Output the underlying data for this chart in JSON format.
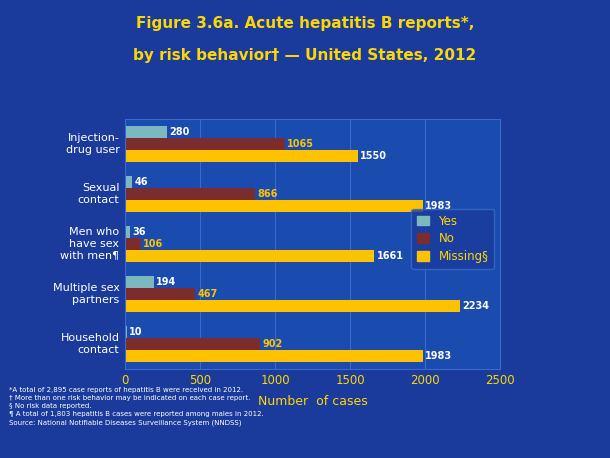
{
  "title_line1": "Figure 3.6a. Acute hepatitis B reports*,",
  "title_line2": "by risk behavior† — United States, 2012",
  "categories": [
    "Injection-\ndrug user",
    "Sexual\ncontact",
    "Men who\nhave sex\nwith men¶",
    "Multiple sex\npartners",
    "Household\ncontact"
  ],
  "yes_values": [
    280,
    46,
    36,
    194,
    10
  ],
  "no_values": [
    1065,
    866,
    106,
    467,
    902
  ],
  "missing_values": [
    1550,
    1983,
    1661,
    2234,
    1983
  ],
  "yes_color": "#7BB8C0",
  "no_color": "#7B2D2D",
  "missing_color": "#FFC200",
  "bar_height": 0.24,
  "xlim": [
    0,
    2500
  ],
  "xlabel": "Number  of cases",
  "background_color": "#1A3A9C",
  "plot_bg_color": "#1A4CB0",
  "grid_color": "#3A6BC8",
  "text_color": "#FFFFFF",
  "title_color": "#FFD700",
  "footnote_lines": [
    "*A total of 2,895 case reports of hepatitis B were received in 2012.",
    "† More than one risk behavior may be indicated on each case report.",
    "§ No risk data reported.",
    "¶ A total of 1,803 hepatitis B cases were reported among males in 2012.",
    "Source: National Notifiable Diseases Surveillance System (NNDSS)"
  ],
  "legend_labels": [
    "Yes",
    "No",
    "Missing§"
  ],
  "xticks": [
    0,
    500,
    1000,
    1500,
    2000,
    2500
  ],
  "yes_label_color": "#FFFFFF",
  "no_label_color": "#FFC200",
  "missing_label_color": "#FFFFFF"
}
